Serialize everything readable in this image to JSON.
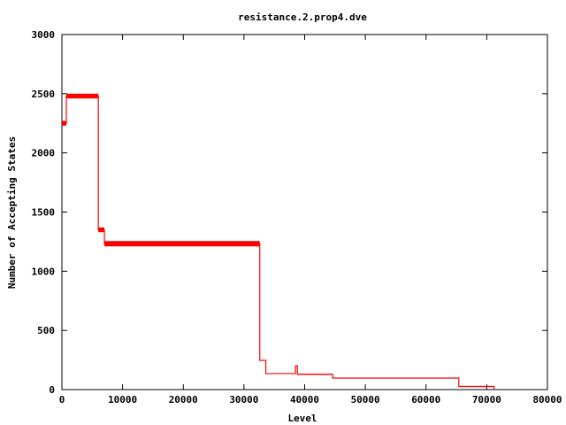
{
  "chart_data": {
    "type": "line",
    "title": "resistance.2.prop4.dve",
    "xlabel": "Level",
    "ylabel": "Number of Accepting States",
    "xlim": [
      0,
      80000
    ],
    "ylim": [
      0,
      3000
    ],
    "xticks": [
      0,
      10000,
      20000,
      30000,
      40000,
      50000,
      60000,
      70000,
      80000
    ],
    "yticks": [
      0,
      500,
      1000,
      1500,
      2000,
      2500,
      3000
    ],
    "grid": false,
    "line_color": "#ff0000",
    "series": [
      {
        "style": "step",
        "segments": [
          {
            "x0": 0,
            "x1": 730,
            "ymin": 2230,
            "ymax": 2270
          },
          {
            "x0": 730,
            "x1": 6000,
            "ymin": 2460,
            "ymax": 2500
          },
          {
            "x0": 6000,
            "x1": 7000,
            "ymin": 1330,
            "ymax": 1370
          },
          {
            "x0": 7000,
            "x1": 32600,
            "ymin": 1210,
            "ymax": 1255
          },
          {
            "x0": 32600,
            "x1": 33600,
            "ymin": 247,
            "ymax": 247
          },
          {
            "x0": 33600,
            "x1": 38500,
            "ymin": 135,
            "ymax": 135
          },
          {
            "x0": 38500,
            "x1": 38800,
            "ymin": 200,
            "ymax": 200
          },
          {
            "x0": 38800,
            "x1": 44600,
            "ymin": 125,
            "ymax": 135
          },
          {
            "x0": 44600,
            "x1": 65400,
            "ymin": 97,
            "ymax": 97
          },
          {
            "x0": 65400,
            "x1": 71200,
            "ymin": 26,
            "ymax": 26
          },
          {
            "x0": 71200,
            "x1": 71200,
            "ymin": 0,
            "ymax": 0
          }
        ]
      }
    ]
  }
}
